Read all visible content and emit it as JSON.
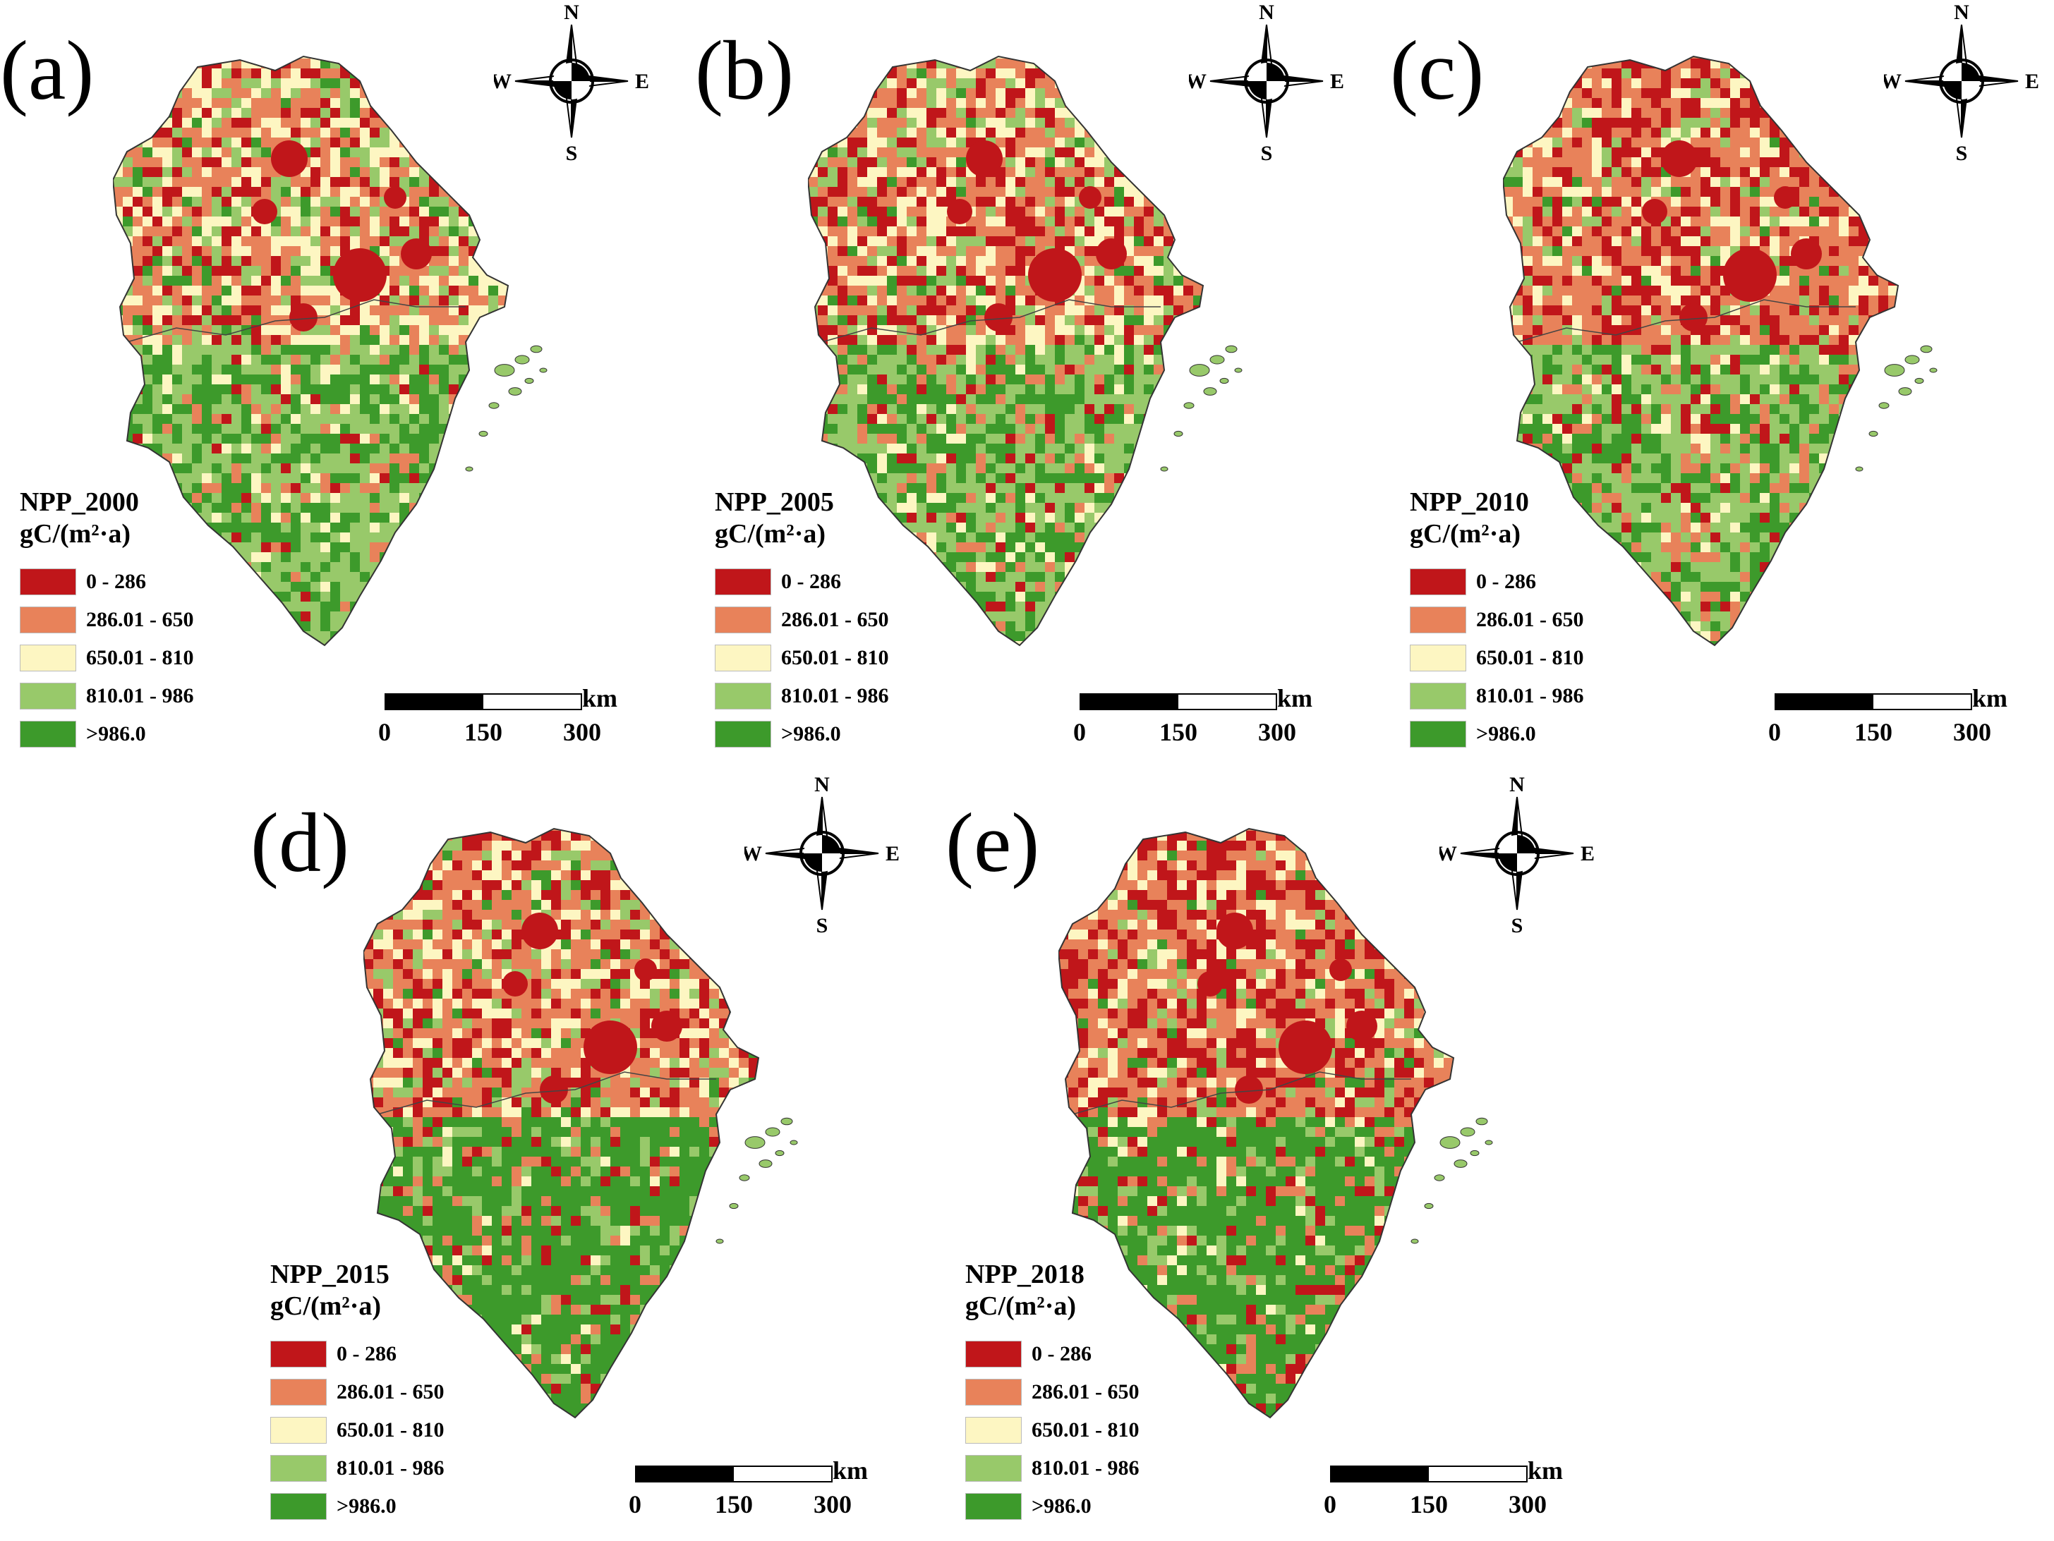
{
  "colors": {
    "class1": "#c0161a",
    "class2": "#e8825a",
    "class3": "#fdf6c2",
    "class4": "#98c96a",
    "class5": "#3d9a2b"
  },
  "compass": {
    "n": "N",
    "s": "S",
    "e": "E",
    "w": "W",
    "icon": "compass-rose-icon"
  },
  "legend": {
    "unit": "gC/(m²·a)",
    "classes": [
      {
        "label": "0 - 286",
        "color": "#c0161a"
      },
      {
        "label": "286.01 - 650",
        "color": "#e8825a"
      },
      {
        "label": "650.01 - 810",
        "color": "#fdf6c2"
      },
      {
        "label": "810.01 - 986",
        "color": "#98c96a"
      },
      {
        "label": ">986.0",
        "color": "#3d9a2b"
      }
    ]
  },
  "scalebar": {
    "unit": "km",
    "ticks": [
      "0",
      "150",
      "300"
    ]
  },
  "panels": [
    {
      "letter": "(a)",
      "title": "NPP_2000"
    },
    {
      "letter": "(b)",
      "title": "NPP_2005"
    },
    {
      "letter": "(c)",
      "title": "NPP_2010"
    },
    {
      "letter": "(d)",
      "title": "NPP_2015"
    },
    {
      "letter": "(e)",
      "title": "NPP_2018"
    }
  ]
}
